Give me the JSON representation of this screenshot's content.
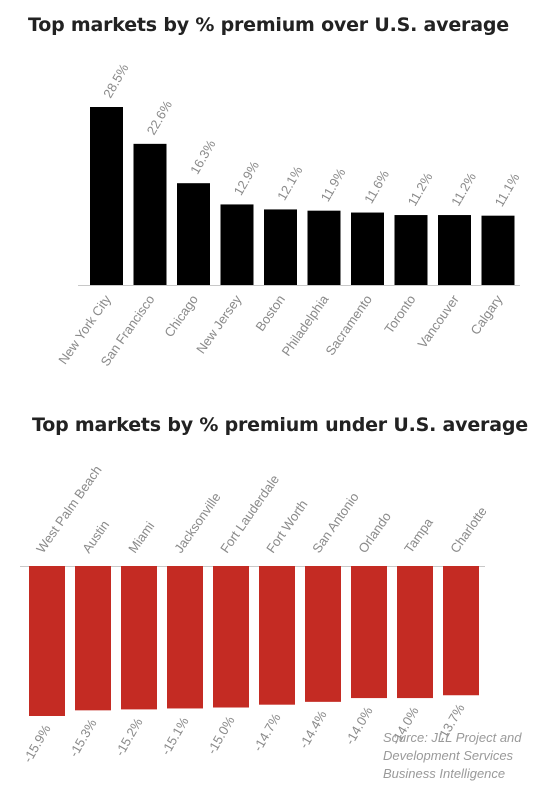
{
  "chart_data": [
    {
      "type": "bar",
      "title": "Top markets by % premium over U.S. average",
      "categories": [
        "New York City",
        "San Francisco",
        "Chicago",
        "New Jersey",
        "Boston",
        "Philadelphia",
        "Sacramento",
        "Toronto",
        "Vancouver",
        "Calgary"
      ],
      "values": [
        28.5,
        22.6,
        16.3,
        12.9,
        12.1,
        11.9,
        11.6,
        11.2,
        11.2,
        11.1
      ],
      "value_labels": [
        "28.5%",
        "22.6%",
        "16.3%",
        "12.9%",
        "12.1%",
        "11.9%",
        "11.6%",
        "11.2%",
        "11.2%",
        "11.1%"
      ],
      "color": "#000000",
      "xlabel": "",
      "ylabel": "",
      "grid": false
    },
    {
      "type": "bar",
      "title": "Top markets by % premium under U.S. average",
      "categories": [
        "West Palm Beach",
        "Austin",
        "Miami",
        "Jacksonville",
        "Fort Lauderdale",
        "Fort Worth",
        "San Antonio",
        "Orlando",
        "Tampa",
        "Charlotte"
      ],
      "values": [
        -15.9,
        -15.3,
        -15.2,
        -15.1,
        -15.0,
        -14.7,
        -14.4,
        -14.0,
        -14.0,
        -13.7
      ],
      "value_labels": [
        "-15.9%",
        "-15.3%",
        "-15.2%",
        "-15.1%",
        "-15.0%",
        "-14.7%",
        "-14.4%",
        "-14.0%",
        "-14.0%",
        "-13.7%"
      ],
      "color": "#c42b23",
      "xlabel": "",
      "ylabel": "",
      "grid": false
    }
  ],
  "source_lines": [
    "Source: JLL Project and",
    "Development Services",
    "Business Intelligence"
  ]
}
